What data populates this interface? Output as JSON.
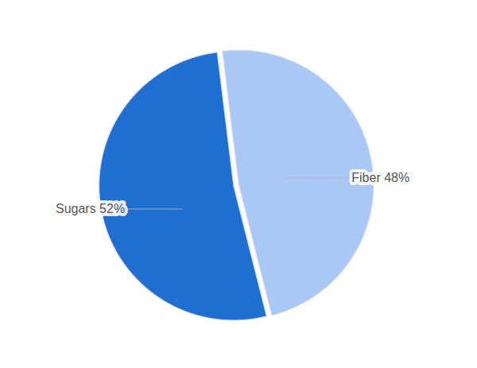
{
  "chart_data": {
    "type": "pie",
    "categories": [
      "Sugars 52%",
      "Fiber 48%"
    ],
    "values": [
      52,
      48
    ],
    "colors": [
      "#1f6fd0",
      "#aac8f5"
    ],
    "tick_labels": false
  }
}
